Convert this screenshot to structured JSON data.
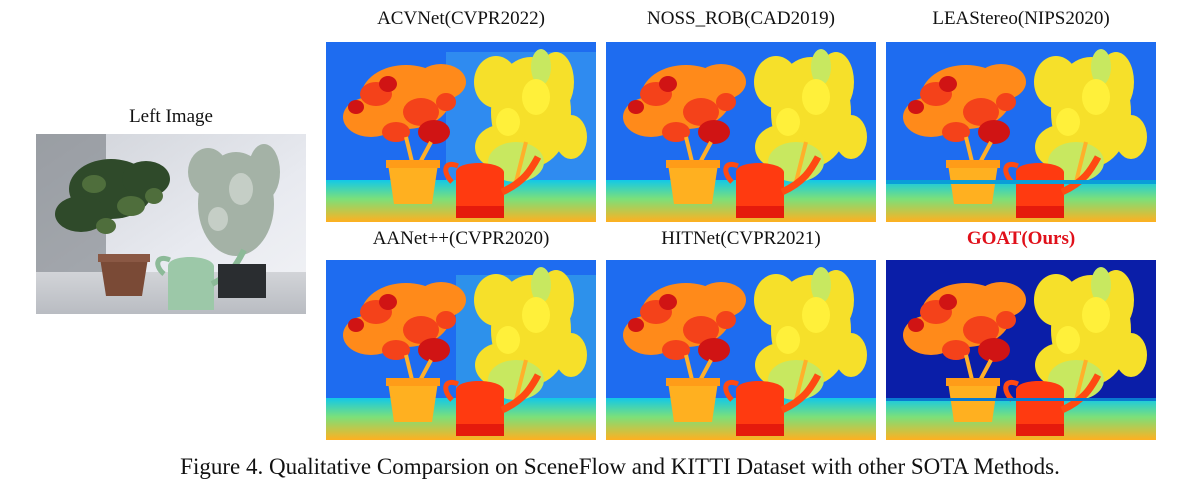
{
  "left_image": {
    "label": "Left Image"
  },
  "methods": [
    {
      "label": "ACVNet(CVPR2022)"
    },
    {
      "label": "NOSS_ROB(CAD2019)"
    },
    {
      "label": "LEAStereo(NIPS2020)"
    },
    {
      "label": "AANet++(CVPR2020)"
    },
    {
      "label": "HITNet(CVPR2021)"
    },
    {
      "label": "GOAT(Ours)"
    }
  ],
  "caption": "Figure 4. Qualitative Comparsion on SceneFlow and KITTI Dataset with other SOTA Methods.",
  "colors": {
    "background_blue": "#1e6cf0",
    "ours_background": "#0a1ea8",
    "ours_label": "#e0101a"
  }
}
